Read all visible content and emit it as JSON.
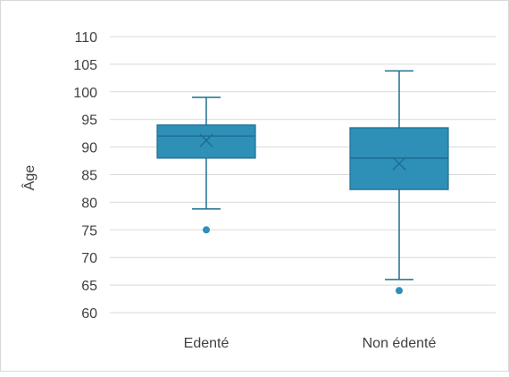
{
  "chart_data": {
    "type": "box",
    "title": "",
    "xlabel": "",
    "ylabel": "Âge",
    "ylim": [
      60,
      110
    ],
    "y_ticks": [
      60,
      65,
      70,
      75,
      80,
      85,
      90,
      95,
      100,
      105,
      110
    ],
    "grid": true,
    "categories": [
      "Edenté",
      "Non édenté"
    ],
    "boxes": [
      {
        "category": "Edenté",
        "whisker_low": 78.8,
        "q1": 88,
        "median": 92,
        "mean": 91.2,
        "q3": 94,
        "whisker_high": 99,
        "outliers": [
          75
        ]
      },
      {
        "category": "Non édenté",
        "whisker_low": 66,
        "q1": 82.3,
        "median": 88,
        "mean": 87,
        "q3": 93.5,
        "whisker_high": 103.8,
        "outliers": [
          64
        ]
      }
    ],
    "colors": {
      "box_fill": "#2e8fb7",
      "box_edge": "#1f6f91",
      "grid": "#d9d9d9",
      "axis_text": "#404040"
    }
  }
}
